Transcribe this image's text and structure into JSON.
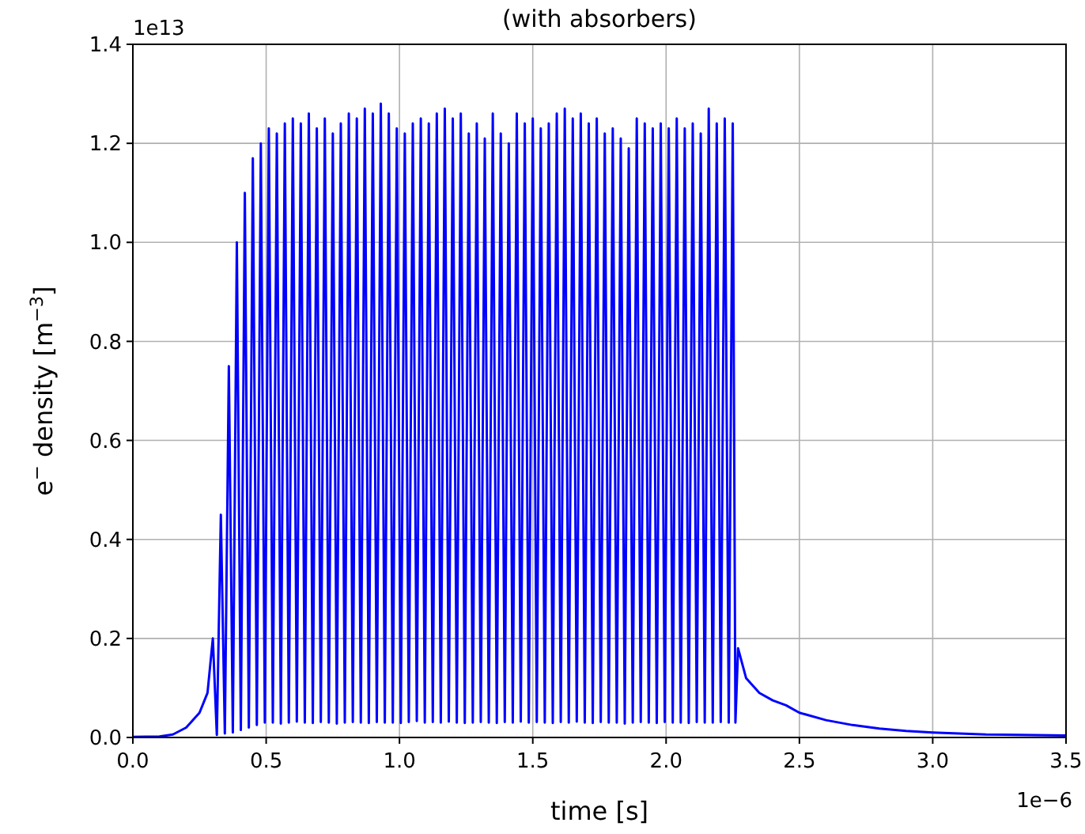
{
  "chart_data": {
    "type": "line",
    "title": "(with absorbers)",
    "xlabel": "time [s]",
    "ylabel": "e$^{−}$ density [m$^{−3}$]",
    "annotations": [
      "1e13",
      "1e−6"
    ],
    "xlim": [
      0,
      3.5
    ],
    "xticks": [
      {
        "value": 0,
        "label": "0.0"
      },
      0.5,
      {
        "value": 1,
        "label": "1.0"
      },
      1.5,
      {
        "value": 2,
        "label": "2.0"
      },
      2.5,
      {
        "value": 3,
        "label": "3.0"
      },
      3.5
    ],
    "ylim": [
      0,
      1.4
    ],
    "yticks": [
      {
        "value": 0,
        "label": "0.0"
      },
      0.2,
      0.4,
      0.6,
      0.8,
      {
        "value": 1,
        "label": "1.0"
      },
      1.2,
      1.4
    ],
    "grid": true,
    "series": [
      {
        "color": "#0000ff",
        "x": [
          0,
          0.1,
          0.15,
          0.2,
          0.25,
          0.28,
          0.3,
          0.315,
          0.33,
          0.345,
          0.36,
          0.375,
          0.39,
          0.405,
          0.42,
          0.435,
          0.45,
          0.465,
          0.48,
          0.495,
          0.51,
          0.525,
          0.54,
          0.555,
          0.57,
          0.585,
          0.6,
          0.615,
          0.63,
          0.645,
          0.66,
          0.675,
          0.69,
          0.705,
          0.72,
          0.735,
          0.75,
          0.765,
          0.78,
          0.795,
          0.81,
          0.825,
          0.84,
          0.855,
          0.87,
          0.885,
          0.9,
          0.915,
          0.93,
          0.945,
          0.96,
          0.975,
          0.99,
          1.005,
          1.02,
          1.035,
          1.05,
          1.065,
          1.08,
          1.095,
          1.11,
          1.125,
          1.14,
          1.155,
          1.17,
          1.185,
          1.2,
          1.215,
          1.23,
          1.245,
          1.26,
          1.275,
          1.29,
          1.305,
          1.32,
          1.335,
          1.35,
          1.365,
          1.38,
          1.395,
          1.41,
          1.425,
          1.44,
          1.455,
          1.47,
          1.485,
          1.5,
          1.515,
          1.53,
          1.545,
          1.56,
          1.575,
          1.59,
          1.605,
          1.62,
          1.635,
          1.65,
          1.665,
          1.68,
          1.695,
          1.71,
          1.725,
          1.74,
          1.755,
          1.77,
          1.785,
          1.8,
          1.815,
          1.83,
          1.845,
          1.86,
          1.875,
          1.89,
          1.905,
          1.92,
          1.935,
          1.95,
          1.965,
          1.98,
          1.995,
          2.01,
          2.025,
          2.04,
          2.055,
          2.07,
          2.085,
          2.1,
          2.115,
          2.13,
          2.145,
          2.16,
          2.175,
          2.19,
          2.205,
          2.22,
          2.235,
          2.25,
          2.26,
          2.27,
          2.3,
          2.35,
          2.4,
          2.45,
          2.5,
          2.6,
          2.7,
          2.8,
          2.9,
          3.0,
          3.2,
          3.5
        ],
        "values": [
          0.001,
          0.002,
          0.006,
          0.02,
          0.05,
          0.09,
          0.2,
          0.005,
          0.45,
          0.008,
          0.75,
          0.01,
          1.0,
          0.015,
          1.1,
          0.02,
          1.17,
          0.025,
          1.2,
          0.03,
          1.23,
          0.03,
          1.22,
          0.028,
          1.24,
          0.03,
          1.25,
          0.032,
          1.24,
          0.03,
          1.26,
          0.029,
          1.23,
          0.031,
          1.25,
          0.03,
          1.22,
          0.028,
          1.24,
          0.03,
          1.26,
          0.031,
          1.25,
          0.03,
          1.27,
          0.029,
          1.26,
          0.031,
          1.28,
          0.03,
          1.26,
          0.03,
          1.23,
          0.029,
          1.22,
          0.031,
          1.24,
          0.033,
          1.25,
          0.03,
          1.24,
          0.031,
          1.26,
          0.03,
          1.27,
          0.032,
          1.25,
          0.03,
          1.26,
          0.029,
          1.22,
          0.03,
          1.24,
          0.031,
          1.21,
          0.03,
          1.26,
          0.029,
          1.22,
          0.031,
          1.2,
          0.03,
          1.26,
          0.032,
          1.24,
          0.03,
          1.25,
          0.031,
          1.23,
          0.03,
          1.24,
          0.029,
          1.26,
          0.031,
          1.27,
          0.03,
          1.25,
          0.032,
          1.26,
          0.03,
          1.24,
          0.029,
          1.25,
          0.031,
          1.22,
          0.03,
          1.23,
          0.03,
          1.21,
          0.028,
          1.19,
          0.03,
          1.25,
          0.031,
          1.24,
          0.03,
          1.23,
          0.029,
          1.24,
          0.031,
          1.23,
          0.03,
          1.25,
          0.03,
          1.23,
          0.029,
          1.24,
          0.031,
          1.22,
          0.03,
          1.27,
          0.03,
          1.24,
          0.031,
          1.25,
          0.03,
          1.24,
          0.03,
          0.18,
          0.12,
          0.09,
          0.075,
          0.065,
          0.05,
          0.035,
          0.025,
          0.018,
          0.013,
          0.01,
          0.006,
          0.004
        ]
      }
    ]
  }
}
